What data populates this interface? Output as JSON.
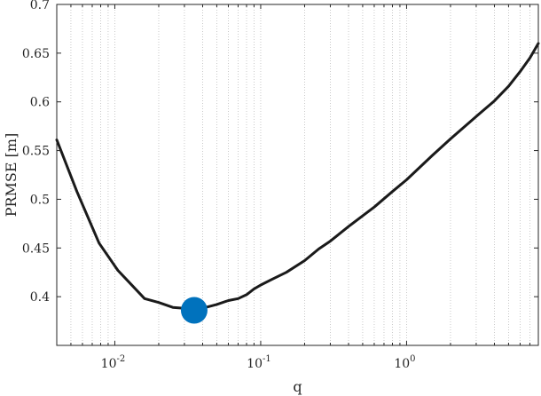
{
  "chart_data": {
    "type": "line",
    "title": "",
    "xlabel": "q",
    "ylabel": "PRMSE [m]",
    "x_scale": "log",
    "xlim": [
      0.004,
      8
    ],
    "ylim": [
      0.35,
      0.7
    ],
    "grid": {
      "x_minor_dotted": true,
      "y": false
    },
    "x_ticks": [
      {
        "value": 0.01,
        "base": "10",
        "exp": "-2"
      },
      {
        "value": 0.1,
        "base": "10",
        "exp": "-1"
      },
      {
        "value": 1,
        "base": "10",
        "exp": "0"
      }
    ],
    "y_ticks": [
      "0.4",
      "0.45",
      "0.5",
      "0.55",
      "0.6",
      "0.65",
      "0.7"
    ],
    "series": [
      {
        "color": "#1a1a1a",
        "points": [
          [
            0.004,
            0.561
          ],
          [
            0.0055,
            0.508
          ],
          [
            0.0078,
            0.455
          ],
          [
            0.0105,
            0.427
          ],
          [
            0.0125,
            0.415
          ],
          [
            0.016,
            0.398
          ],
          [
            0.02,
            0.394
          ],
          [
            0.025,
            0.389
          ],
          [
            0.03,
            0.388
          ],
          [
            0.035,
            0.386
          ],
          [
            0.042,
            0.389
          ],
          [
            0.05,
            0.392
          ],
          [
            0.06,
            0.396
          ],
          [
            0.07,
            0.398
          ],
          [
            0.08,
            0.402
          ],
          [
            0.09,
            0.408
          ],
          [
            0.1,
            0.412
          ],
          [
            0.12,
            0.418
          ],
          [
            0.15,
            0.425
          ],
          [
            0.2,
            0.437
          ],
          [
            0.25,
            0.449
          ],
          [
            0.3,
            0.457
          ],
          [
            0.4,
            0.472
          ],
          [
            0.5,
            0.483
          ],
          [
            0.6,
            0.492
          ],
          [
            0.8,
            0.508
          ],
          [
            1.0,
            0.52
          ],
          [
            1.5,
            0.545
          ],
          [
            2.0,
            0.562
          ],
          [
            3.0,
            0.585
          ],
          [
            4.0,
            0.601
          ],
          [
            5.0,
            0.616
          ],
          [
            6.0,
            0.631
          ],
          [
            7.0,
            0.645
          ],
          [
            8.0,
            0.66
          ]
        ]
      }
    ],
    "marker": {
      "x": 0.035,
      "y": 0.386,
      "color": "#0072BD"
    }
  }
}
